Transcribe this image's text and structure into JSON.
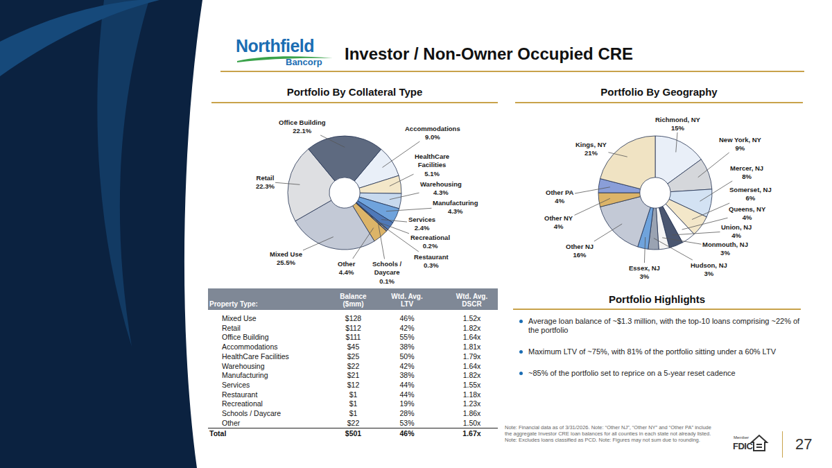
{
  "header": {
    "logo": "Northfield",
    "logo_sub": "Bancorp",
    "title": "Investor / Non-Owner Occupied CRE",
    "page_number": "27"
  },
  "chart_data": [
    {
      "type": "pie",
      "title": "Portfolio By Collateral Type",
      "categories": [
        "Accommodations",
        "HealthCare Facilities",
        "Warehousing",
        "Manufacturing",
        "Services",
        "Recreational",
        "Restaurant",
        "Schools / Daycare",
        "Other",
        "Mixed Use",
        "Retail",
        "Office Building"
      ],
      "values": [
        9.0,
        5.1,
        4.3,
        4.3,
        2.4,
        0.2,
        0.3,
        0.1,
        4.4,
        25.5,
        22.3,
        22.1
      ],
      "value_labels": [
        "9.0%",
        "5.1%",
        "4.3%",
        "4.3%",
        "2.4%",
        "0.2%",
        "0.3%",
        "0.1%",
        "4.4%",
        "25.5%",
        "22.3%",
        "22.1%"
      ],
      "colors": [
        "#e9eff8",
        "#f3e7c9",
        "#c7d9ee",
        "#6fa3dc",
        "#4f79b8",
        "#8c96a8",
        "#e3e6ec",
        "#3b4558",
        "#dcb468",
        "#c3c9d6",
        "#dedfe2",
        "#5e6a80"
      ],
      "data_labels": true
    },
    {
      "type": "pie",
      "title": "Portfolio By Geography",
      "categories": [
        "Richmond, NY",
        "New York, NY",
        "Mercer, NJ",
        "Somerset, NJ",
        "Queens, NY",
        "Union, NJ",
        "Monmouth, NJ",
        "Hudson, NJ",
        "Essex, NJ",
        "Other NJ",
        "Other NY",
        "Other PA",
        "Kings, NY"
      ],
      "values": [
        15,
        9,
        8,
        6,
        4,
        4,
        3,
        3,
        3,
        16,
        4,
        4,
        21
      ],
      "value_labels": [
        "15%",
        "9%",
        "8%",
        "6%",
        "4%",
        "4%",
        "3%",
        "3%",
        "3%",
        "16%",
        "4%",
        "4%",
        "21%"
      ],
      "colors": [
        "#e9eff8",
        "#d5d7db",
        "#d3e2f3",
        "#f3e7c9",
        "#ffffff",
        "#4a5670",
        "#f5f5f5",
        "#9aa3b2",
        "#6fa3dc",
        "#c3c9d6",
        "#dcb468",
        "#8a9ed8",
        "#f0e3c3"
      ],
      "data_labels": true
    }
  ],
  "table": {
    "header": [
      "Property Type:",
      "Balance ($mm)",
      "Wtd. Avg. LTV",
      "Wtd. Avg. DSCR"
    ],
    "rows": [
      [
        "Mixed Use",
        "$128",
        "46%",
        "1.52x"
      ],
      [
        "Retail",
        "$112",
        "42%",
        "1.82x"
      ],
      [
        "Office Building",
        "$111",
        "55%",
        "1.64x"
      ],
      [
        "Accommodations",
        "$45",
        "38%",
        "1.81x"
      ],
      [
        "HealthCare Facilities",
        "$25",
        "50%",
        "1.79x"
      ],
      [
        "Warehousing",
        "$22",
        "42%",
        "1.64x"
      ],
      [
        "Manufacturing",
        "$21",
        "38%",
        "1.82x"
      ],
      [
        "Services",
        "$12",
        "44%",
        "1.55x"
      ],
      [
        "Restaurant",
        "$1",
        "44%",
        "1.18x"
      ],
      [
        "Recreational",
        "$1",
        "19%",
        "1.23x"
      ],
      [
        "Schools / Daycare",
        "$1",
        "28%",
        "1.86x"
      ],
      [
        "Other",
        "$22",
        "53%",
        "1.50x"
      ]
    ],
    "total": [
      "Total",
      "$501",
      "46%",
      "1.67x"
    ]
  },
  "highlights": {
    "title": "Portfolio Highlights",
    "bullets": [
      "Average loan balance of ~$1.3 million, with the top-10 loans comprising ~22% of the portfolio",
      "Maximum LTV of ~75%, with 81% of the portfolio sitting under a 60% LTV",
      "~85% of the portfolio set to reprice on a 5-year reset cadence"
    ]
  },
  "footer": {
    "note": "Note: Financial data as of 3/31/2026. Note: “Other NJ”, “Other NY” and “Other PA” include the aggregate Investor CRE loan balances for all counties in each state not already listed. Note: Excludes loans classified as PCD. Note: Figures may not sum due to rounding.",
    "badge": [
      "Member",
      "FDIC"
    ]
  }
}
